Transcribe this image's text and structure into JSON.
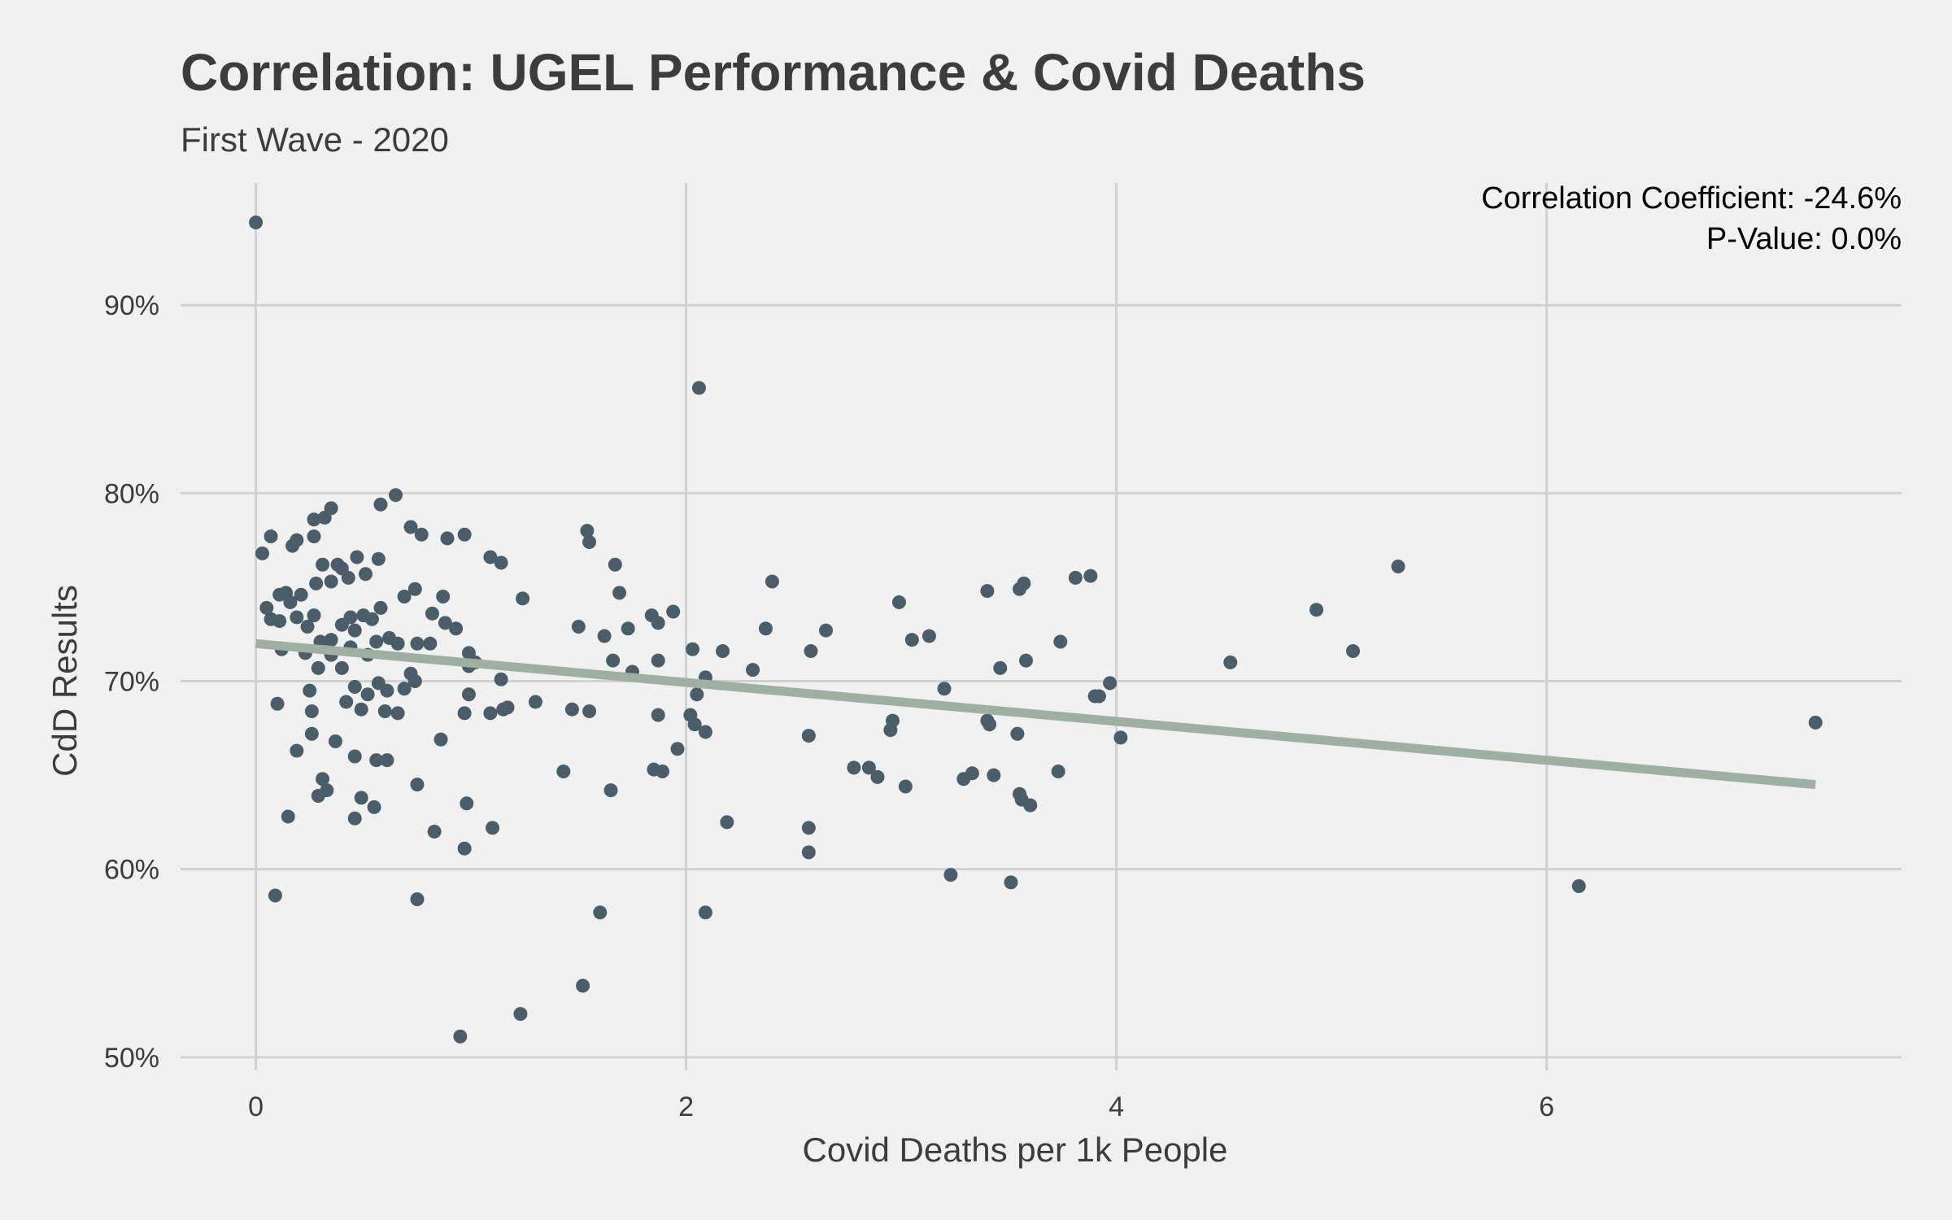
{
  "chart_data": {
    "type": "scatter",
    "title": "Correlation: UGEL Performance & Covid Deaths",
    "subtitle": "First Wave - 2020",
    "xlabel": "Covid Deaths per 1k People",
    "ylabel": "CdD Results",
    "xlim": [
      -0.35,
      7.65
    ],
    "ylim": [
      49.3,
      96.5
    ],
    "x_ticks": [
      0,
      2,
      4,
      6
    ],
    "x_tick_labels": [
      "0",
      "2",
      "4",
      "6"
    ],
    "y_ticks": [
      50,
      60,
      70,
      80,
      90
    ],
    "y_tick_labels": [
      "50%",
      "60%",
      "70%",
      "80%",
      "90%"
    ],
    "grid": true,
    "annotation": [
      "Correlation Coefficient: -24.6%",
      "P-Value: 0.0%"
    ],
    "trendline": {
      "x": [
        0.0,
        7.25
      ],
      "y": [
        72.0,
        64.5
      ]
    },
    "colors": {
      "points": "#4a5d68",
      "trendline": "#9fb0a3",
      "grid": "#d2d2d2",
      "background": "#f1f1f1"
    },
    "points": [
      [
        0.0,
        94.4
      ],
      [
        2.06,
        85.6
      ],
      [
        0.65,
        79.9
      ],
      [
        0.35,
        79.2
      ],
      [
        0.27,
        78.6
      ],
      [
        0.32,
        78.7
      ],
      [
        0.58,
        79.4
      ],
      [
        0.72,
        78.2
      ],
      [
        0.97,
        77.8
      ],
      [
        0.77,
        77.8
      ],
      [
        0.89,
        77.6
      ],
      [
        0.07,
        77.7
      ],
      [
        0.19,
        77.5
      ],
      [
        0.27,
        77.7
      ],
      [
        0.17,
        77.2
      ],
      [
        0.03,
        76.8
      ],
      [
        1.54,
        78.0
      ],
      [
        1.55,
        77.4
      ],
      [
        1.67,
        76.2
      ],
      [
        1.09,
        76.6
      ],
      [
        1.14,
        76.3
      ],
      [
        0.57,
        76.5
      ],
      [
        0.47,
        76.6
      ],
      [
        0.31,
        76.2
      ],
      [
        0.4,
        76.0
      ],
      [
        0.38,
        76.2
      ],
      [
        0.35,
        75.3
      ],
      [
        0.43,
        75.5
      ],
      [
        0.51,
        75.7
      ],
      [
        0.28,
        75.2
      ],
      [
        0.11,
        74.6
      ],
      [
        0.14,
        74.7
      ],
      [
        0.21,
        74.6
      ],
      [
        0.16,
        74.2
      ],
      [
        0.05,
        73.9
      ],
      [
        0.07,
        73.3
      ],
      [
        0.11,
        73.2
      ],
      [
        0.19,
        73.4
      ],
      [
        0.24,
        72.9
      ],
      [
        0.27,
        73.5
      ],
      [
        0.3,
        72.1
      ],
      [
        0.35,
        72.2
      ],
      [
        0.4,
        73.0
      ],
      [
        0.44,
        73.4
      ],
      [
        0.46,
        72.7
      ],
      [
        0.5,
        73.5
      ],
      [
        0.54,
        73.3
      ],
      [
        0.58,
        73.9
      ],
      [
        0.62,
        72.3
      ],
      [
        0.66,
        72.0
      ],
      [
        0.69,
        74.5
      ],
      [
        0.74,
        74.9
      ],
      [
        0.87,
        74.5
      ],
      [
        0.82,
        73.6
      ],
      [
        0.88,
        73.1
      ],
      [
        0.93,
        72.8
      ],
      [
        0.75,
        72.0
      ],
      [
        0.81,
        72.0
      ],
      [
        0.99,
        71.5
      ],
      [
        0.99,
        70.8
      ],
      [
        1.02,
        71.0
      ],
      [
        1.14,
        70.1
      ],
      [
        0.72,
        70.4
      ],
      [
        0.74,
        70.0
      ],
      [
        0.69,
        69.6
      ],
      [
        0.57,
        69.9
      ],
      [
        0.61,
        69.5
      ],
      [
        0.52,
        69.3
      ],
      [
        0.46,
        69.7
      ],
      [
        0.42,
        68.9
      ],
      [
        0.49,
        68.5
      ],
      [
        0.6,
        68.4
      ],
      [
        0.66,
        68.3
      ],
      [
        0.25,
        69.5
      ],
      [
        0.26,
        68.4
      ],
      [
        0.1,
        68.8
      ],
      [
        0.12,
        71.7
      ],
      [
        0.23,
        71.5
      ],
      [
        0.29,
        70.7
      ],
      [
        0.35,
        71.4
      ],
      [
        0.4,
        70.7
      ],
      [
        0.44,
        71.8
      ],
      [
        0.52,
        71.4
      ],
      [
        0.56,
        72.1
      ],
      [
        0.97,
        68.3
      ],
      [
        0.99,
        69.3
      ],
      [
        1.09,
        68.3
      ],
      [
        1.15,
        68.5
      ],
      [
        1.17,
        68.6
      ],
      [
        1.3,
        68.9
      ],
      [
        1.24,
        74.4
      ],
      [
        1.5,
        72.9
      ],
      [
        1.62,
        72.4
      ],
      [
        1.69,
        74.7
      ],
      [
        1.73,
        72.8
      ],
      [
        1.66,
        71.1
      ],
      [
        1.75,
        70.5
      ],
      [
        1.84,
        73.5
      ],
      [
        1.87,
        73.1
      ],
      [
        1.94,
        73.7
      ],
      [
        1.87,
        71.1
      ],
      [
        2.03,
        71.7
      ],
      [
        2.17,
        71.6
      ],
      [
        2.09,
        70.2
      ],
      [
        2.02,
        68.2
      ],
      [
        2.05,
        69.3
      ],
      [
        2.04,
        67.7
      ],
      [
        2.09,
        67.3
      ],
      [
        1.87,
        68.2
      ],
      [
        1.47,
        68.5
      ],
      [
        1.55,
        68.4
      ],
      [
        1.43,
        65.2
      ],
      [
        1.65,
        64.2
      ],
      [
        1.85,
        65.3
      ],
      [
        1.89,
        65.2
      ],
      [
        1.96,
        66.4
      ],
      [
        2.31,
        70.6
      ],
      [
        2.37,
        72.8
      ],
      [
        2.4,
        75.3
      ],
      [
        2.58,
        71.6
      ],
      [
        2.65,
        72.7
      ],
      [
        2.57,
        67.1
      ],
      [
        2.19,
        62.5
      ],
      [
        2.57,
        62.2
      ],
      [
        2.57,
        60.9
      ],
      [
        2.78,
        65.4
      ],
      [
        2.85,
        65.4
      ],
      [
        2.89,
        64.9
      ],
      [
        2.95,
        67.4
      ],
      [
        2.96,
        67.9
      ],
      [
        3.02,
        64.4
      ],
      [
        3.05,
        72.2
      ],
      [
        2.99,
        74.2
      ],
      [
        3.13,
        72.4
      ],
      [
        3.2,
        69.6
      ],
      [
        3.29,
        64.8
      ],
      [
        3.33,
        65.1
      ],
      [
        3.43,
        65.0
      ],
      [
        3.41,
        67.7
      ],
      [
        3.4,
        67.9
      ],
      [
        3.4,
        74.8
      ],
      [
        3.46,
        70.7
      ],
      [
        3.54,
        67.2
      ],
      [
        3.55,
        64.0
      ],
      [
        3.56,
        63.7
      ],
      [
        3.6,
        63.4
      ],
      [
        3.58,
        71.1
      ],
      [
        3.55,
        74.9
      ],
      [
        3.57,
        75.2
      ],
      [
        3.73,
        65.2
      ],
      [
        3.74,
        72.1
      ],
      [
        3.81,
        75.5
      ],
      [
        3.88,
        75.6
      ],
      [
        3.9,
        69.2
      ],
      [
        3.92,
        69.2
      ],
      [
        3.97,
        69.9
      ],
      [
        4.02,
        67.0
      ],
      [
        4.53,
        71.0
      ],
      [
        4.93,
        73.8
      ],
      [
        5.1,
        71.6
      ],
      [
        5.31,
        76.1
      ],
      [
        7.25,
        67.8
      ],
      [
        6.15,
        59.1
      ],
      [
        3.23,
        59.7
      ],
      [
        3.51,
        59.3
      ],
      [
        0.37,
        66.8
      ],
      [
        0.19,
        66.3
      ],
      [
        0.26,
        67.2
      ],
      [
        0.31,
        64.8
      ],
      [
        0.33,
        64.2
      ],
      [
        0.29,
        63.9
      ],
      [
        0.15,
        62.8
      ],
      [
        0.46,
        66.0
      ],
      [
        0.49,
        63.8
      ],
      [
        0.46,
        62.7
      ],
      [
        0.55,
        63.3
      ],
      [
        0.56,
        65.8
      ],
      [
        0.61,
        65.8
      ],
      [
        0.75,
        64.5
      ],
      [
        0.83,
        62.0
      ],
      [
        0.86,
        66.9
      ],
      [
        0.98,
        63.5
      ],
      [
        1.1,
        62.2
      ],
      [
        0.97,
        61.1
      ],
      [
        0.09,
        58.6
      ],
      [
        0.75,
        58.4
      ],
      [
        1.6,
        57.7
      ],
      [
        2.09,
        57.7
      ],
      [
        0.95,
        51.1
      ],
      [
        1.23,
        52.3
      ],
      [
        1.52,
        53.8
      ]
    ]
  }
}
